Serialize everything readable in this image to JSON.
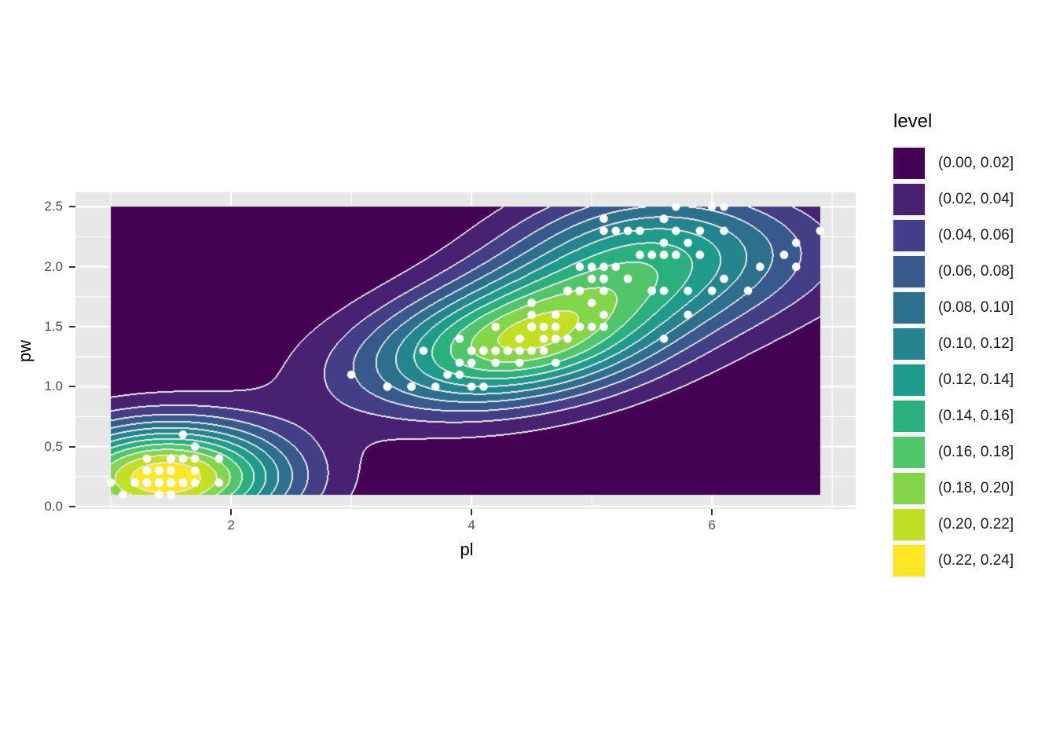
{
  "style": {
    "background": "#ffffff",
    "panel_bg": "#e7e7e7",
    "grid_color": "#ffffff",
    "contour_line_color": "#e6e6e6",
    "point_color": "#ffffff",
    "tick_color": "#333333",
    "tick_label_color": "#4d4d4d",
    "axis_title_color": "#000000",
    "legend_key_bg": "#f2f2f2"
  },
  "chart_data": {
    "type": "filled_density_contour_with_points",
    "title": "",
    "xlabel": "pl",
    "ylabel": "pw",
    "x_ticks": [
      {
        "label": "2",
        "value": 2
      },
      {
        "label": "4",
        "value": 4
      },
      {
        "label": "6",
        "value": 6
      }
    ],
    "y_ticks": [
      {
        "label": "0.0",
        "value": 0.0
      },
      {
        "label": "0.5",
        "value": 0.5
      },
      {
        "label": "1.0",
        "value": 1.0
      },
      {
        "label": "1.5",
        "value": 1.5
      },
      {
        "label": "2.0",
        "value": 2.0
      },
      {
        "label": "2.5",
        "value": 2.5
      }
    ],
    "grid_range": {
      "x": [
        1.0,
        6.9
      ],
      "y": [
        0.1,
        2.5
      ]
    },
    "band_width": 0.02,
    "breaks": [
      0,
      0.02,
      0.04,
      0.06,
      0.08,
      0.1,
      0.12,
      0.14,
      0.16,
      0.18,
      0.2,
      0.22,
      0.24
    ],
    "legend": {
      "title": "level",
      "position": "right",
      "entries": [
        {
          "label": "(0.00, 0.02]",
          "color": "#440154"
        },
        {
          "label": "(0.02, 0.04]",
          "color": "#482173"
        },
        {
          "label": "(0.04, 0.06]",
          "color": "#433E85"
        },
        {
          "label": "(0.06, 0.08]",
          "color": "#38598C"
        },
        {
          "label": "(0.08, 0.10]",
          "color": "#2D708E"
        },
        {
          "label": "(0.10, 0.12]",
          "color": "#25858E"
        },
        {
          "label": "(0.12, 0.14]",
          "color": "#1E9B8A"
        },
        {
          "label": "(0.14, 0.16]",
          "color": "#2AB07F"
        },
        {
          "label": "(0.16, 0.18]",
          "color": "#51C56A"
        },
        {
          "label": "(0.18, 0.20]",
          "color": "#85D54A"
        },
        {
          "label": "(0.20, 0.22]",
          "color": "#C2DF23"
        },
        {
          "label": "(0.22, 0.24]",
          "color": "#FDE725"
        }
      ]
    },
    "points": [
      [
        1.4,
        0.2
      ],
      [
        1.4,
        0.2
      ],
      [
        1.3,
        0.2
      ],
      [
        1.5,
        0.2
      ],
      [
        1.4,
        0.2
      ],
      [
        1.7,
        0.4
      ],
      [
        1.4,
        0.3
      ],
      [
        1.5,
        0.2
      ],
      [
        1.4,
        0.2
      ],
      [
        1.5,
        0.1
      ],
      [
        1.5,
        0.2
      ],
      [
        1.6,
        0.2
      ],
      [
        1.4,
        0.1
      ],
      [
        1.1,
        0.1
      ],
      [
        1.2,
        0.2
      ],
      [
        1.5,
        0.4
      ],
      [
        1.3,
        0.4
      ],
      [
        1.4,
        0.3
      ],
      [
        1.7,
        0.3
      ],
      [
        1.5,
        0.3
      ],
      [
        1.7,
        0.2
      ],
      [
        1.5,
        0.4
      ],
      [
        1.0,
        0.2
      ],
      [
        1.7,
        0.5
      ],
      [
        1.9,
        0.2
      ],
      [
        1.6,
        0.2
      ],
      [
        1.6,
        0.4
      ],
      [
        1.5,
        0.2
      ],
      [
        1.4,
        0.2
      ],
      [
        1.6,
        0.2
      ],
      [
        1.6,
        0.2
      ],
      [
        1.5,
        0.4
      ],
      [
        1.5,
        0.1
      ],
      [
        1.4,
        0.2
      ],
      [
        1.5,
        0.2
      ],
      [
        1.2,
        0.2
      ],
      [
        1.3,
        0.2
      ],
      [
        1.4,
        0.1
      ],
      [
        1.3,
        0.2
      ],
      [
        1.5,
        0.2
      ],
      [
        1.3,
        0.3
      ],
      [
        1.3,
        0.3
      ],
      [
        1.3,
        0.2
      ],
      [
        1.6,
        0.6
      ],
      [
        1.9,
        0.4
      ],
      [
        1.4,
        0.3
      ],
      [
        1.6,
        0.2
      ],
      [
        1.4,
        0.2
      ],
      [
        1.5,
        0.2
      ],
      [
        1.4,
        0.2
      ],
      [
        4.7,
        1.4
      ],
      [
        4.5,
        1.5
      ],
      [
        4.9,
        1.5
      ],
      [
        4.0,
        1.3
      ],
      [
        4.6,
        1.5
      ],
      [
        4.5,
        1.3
      ],
      [
        4.7,
        1.6
      ],
      [
        3.3,
        1.0
      ],
      [
        4.6,
        1.3
      ],
      [
        3.9,
        1.4
      ],
      [
        3.5,
        1.0
      ],
      [
        4.2,
        1.5
      ],
      [
        4.0,
        1.0
      ],
      [
        4.7,
        1.4
      ],
      [
        3.6,
        1.3
      ],
      [
        4.4,
        1.4
      ],
      [
        4.5,
        1.5
      ],
      [
        4.1,
        1.0
      ],
      [
        4.5,
        1.5
      ],
      [
        3.9,
        1.1
      ],
      [
        4.8,
        1.8
      ],
      [
        4.0,
        1.3
      ],
      [
        4.9,
        1.5
      ],
      [
        4.7,
        1.2
      ],
      [
        4.3,
        1.3
      ],
      [
        4.4,
        1.4
      ],
      [
        4.8,
        1.4
      ],
      [
        5.0,
        1.7
      ],
      [
        4.5,
        1.5
      ],
      [
        3.5,
        1.0
      ],
      [
        3.8,
        1.1
      ],
      [
        3.7,
        1.0
      ],
      [
        3.9,
        1.2
      ],
      [
        5.1,
        1.6
      ],
      [
        4.5,
        1.5
      ],
      [
        4.5,
        1.6
      ],
      [
        4.7,
        1.5
      ],
      [
        4.4,
        1.3
      ],
      [
        4.1,
        1.3
      ],
      [
        4.0,
        1.3
      ],
      [
        4.4,
        1.2
      ],
      [
        4.6,
        1.4
      ],
      [
        4.0,
        1.2
      ],
      [
        3.3,
        1.0
      ],
      [
        4.2,
        1.3
      ],
      [
        4.2,
        1.2
      ],
      [
        4.2,
        1.3
      ],
      [
        4.3,
        1.3
      ],
      [
        3.0,
        1.1
      ],
      [
        4.1,
        1.3
      ],
      [
        6.0,
        2.5
      ],
      [
        5.1,
        1.9
      ],
      [
        5.9,
        2.1
      ],
      [
        5.6,
        1.8
      ],
      [
        5.8,
        2.2
      ],
      [
        6.6,
        2.1
      ],
      [
        4.5,
        1.7
      ],
      [
        6.3,
        1.8
      ],
      [
        5.8,
        1.8
      ],
      [
        6.1,
        2.5
      ],
      [
        5.1,
        2.0
      ],
      [
        5.3,
        1.9
      ],
      [
        5.5,
        2.1
      ],
      [
        5.0,
        2.0
      ],
      [
        5.1,
        2.4
      ],
      [
        5.3,
        2.3
      ],
      [
        5.5,
        1.8
      ],
      [
        6.7,
        2.2
      ],
      [
        6.9,
        2.3
      ],
      [
        5.0,
        1.5
      ],
      [
        5.7,
        2.3
      ],
      [
        4.9,
        2.0
      ],
      [
        6.7,
        2.0
      ],
      [
        4.9,
        1.8
      ],
      [
        5.7,
        2.1
      ],
      [
        6.0,
        1.8
      ],
      [
        4.8,
        1.8
      ],
      [
        4.9,
        1.8
      ],
      [
        5.6,
        2.1
      ],
      [
        5.8,
        1.6
      ],
      [
        6.1,
        1.9
      ],
      [
        6.4,
        2.0
      ],
      [
        5.6,
        2.2
      ],
      [
        5.1,
        1.5
      ],
      [
        5.6,
        1.4
      ],
      [
        6.1,
        2.3
      ],
      [
        5.6,
        2.4
      ],
      [
        5.5,
        1.8
      ],
      [
        4.8,
        1.8
      ],
      [
        5.4,
        2.1
      ],
      [
        5.6,
        2.4
      ],
      [
        5.1,
        2.3
      ],
      [
        5.1,
        1.9
      ],
      [
        5.9,
        2.3
      ],
      [
        5.7,
        2.5
      ],
      [
        5.2,
        2.3
      ],
      [
        5.0,
        1.9
      ],
      [
        5.2,
        2.0
      ],
      [
        5.4,
        2.3
      ],
      [
        5.1,
        1.8
      ]
    ]
  }
}
